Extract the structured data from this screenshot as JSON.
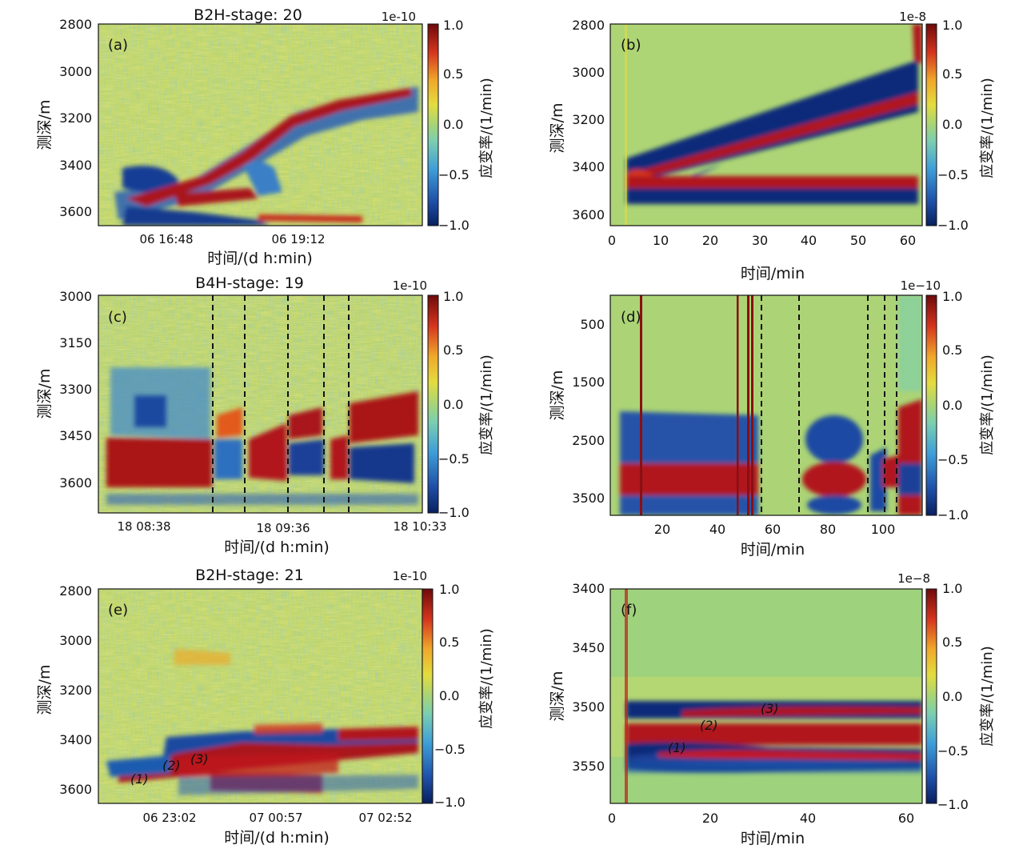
{
  "figure": {
    "colorbar_ticks": [
      "1.0",
      "0.5",
      "0.0",
      "−0.5",
      "−1.0"
    ],
    "colorbar_label": "应变率/(1/min)",
    "colormap_colors": [
      "#08205e",
      "#1f5bb0",
      "#4fb6d7",
      "#a7d477",
      "#e9dc3c",
      "#ee8a23",
      "#c2171c",
      "#6e0a0a"
    ]
  },
  "chart_data": [
    {
      "panel": "(a)",
      "type": "heatmap",
      "title": "B2H-stage: 20",
      "ylabel": "测深/m",
      "xlabel": "时间/(d h:min)",
      "scale": "1e-10",
      "yticks": [
        "2800",
        "3000",
        "3200",
        "3400",
        "3600"
      ],
      "ylim": [
        2800,
        3650
      ],
      "xticks": [
        "06 16:48",
        "06 19:12"
      ],
      "colorbar_range": [
        -1.0,
        1.0
      ]
    },
    {
      "panel": "(b)",
      "type": "heatmap",
      "title": "",
      "ylabel": "测深/m",
      "xlabel": "时间/min",
      "scale": "1e-8",
      "yticks": [
        "2800",
        "3000",
        "3200",
        "3400",
        "3600"
      ],
      "ylim": [
        2800,
        3650
      ],
      "xticks": [
        "0",
        "10",
        "20",
        "30",
        "40",
        "50",
        "60"
      ],
      "xlim": [
        0,
        62
      ],
      "colorbar_range": [
        -1.0,
        1.0
      ]
    },
    {
      "panel": "(c)",
      "type": "heatmap",
      "title": "B4H-stage: 19",
      "ylabel": "测深/m",
      "xlabel": "时间/(d h:min)",
      "scale": "1e-10",
      "yticks": [
        "3000",
        "3150",
        "3300",
        "3450",
        "3600"
      ],
      "ylim": [
        3000,
        3700
      ],
      "xticks": [
        "18 08:38",
        "18 09:36",
        "18 10:33"
      ],
      "colorbar_range": [
        -1.0,
        1.0
      ]
    },
    {
      "panel": "(d)",
      "type": "heatmap",
      "title": "",
      "ylabel": "测深/m",
      "xlabel": "时间/min",
      "scale": "1e−10",
      "yticks": [
        "500",
        "1500",
        "2500",
        "3500"
      ],
      "ylim": [
        0,
        3800
      ],
      "xticks": [
        "20",
        "40",
        "60",
        "80",
        "100"
      ],
      "xlim": [
        2,
        116
      ],
      "colorbar_range": [
        -1.0,
        1.0
      ]
    },
    {
      "panel": "(e)",
      "type": "heatmap",
      "title": "B2H-stage: 21",
      "ylabel": "测深/m",
      "xlabel": "时间/(d h:min)",
      "scale": "1e-10",
      "yticks": [
        "2800",
        "3000",
        "3200",
        "3400",
        "3600"
      ],
      "ylim": [
        2800,
        3650
      ],
      "xticks": [
        "06 23:02",
        "07 00:57",
        "07 02:52"
      ],
      "colorbar_range": [
        -1.0,
        1.0
      ],
      "annotations": [
        "(1)",
        "(2)",
        "(3)"
      ]
    },
    {
      "panel": "(f)",
      "type": "heatmap",
      "title": "",
      "ylabel": "测深/m",
      "xlabel": "时间/min",
      "scale": "1e−8",
      "yticks": [
        "3400",
        "3450",
        "3500",
        "3550"
      ],
      "ylim": [
        3400,
        3585
      ],
      "xticks": [
        "0",
        "20",
        "40",
        "60"
      ],
      "xlim": [
        0,
        63
      ],
      "colorbar_range": [
        -1.0,
        1.0
      ],
      "annotations": [
        "(1)",
        "(2)",
        "(3)"
      ]
    }
  ]
}
